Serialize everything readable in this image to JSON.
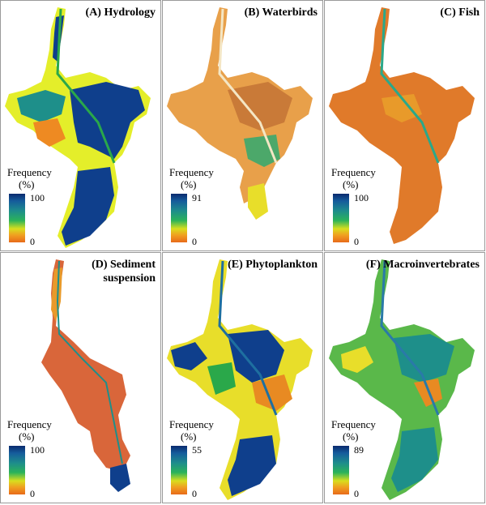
{
  "panels": [
    {
      "id": "A",
      "title": "(A) Hydrology",
      "max": "100",
      "min": "0",
      "palette": {
        "land": "#e4ee2a",
        "body": "#0f3f8c",
        "mid": "#1e8f8a",
        "river": "#2aa84a",
        "warm": "#ee8a22"
      }
    },
    {
      "id": "B",
      "title": "(B) Waterbirds",
      "max": "91",
      "min": "0",
      "palette": {
        "land": "#e8a04a",
        "body": "#d98a40",
        "mid": "#c97a38",
        "river": "#f4e6c4",
        "warm": "#4ca86a"
      }
    },
    {
      "id": "C",
      "title": "(C) Fish",
      "max": "100",
      "min": "0",
      "palette": {
        "land": "#e07a2a",
        "body": "#d96a22",
        "mid": "#e89a2a",
        "river": "#2aa88a",
        "warm": "#c45a20"
      }
    },
    {
      "id": "D",
      "title_line1": "(D) Sediment",
      "title_line2": "suspension",
      "max": "100",
      "min": "0",
      "palette": {
        "land": "#d9663a",
        "body": "#d45a30",
        "mid": "#e89a2a",
        "river": "#1e8f8a",
        "warm": "#c44a28"
      }
    },
    {
      "id": "E",
      "title": "(E) Phytoplankton",
      "max": "55",
      "min": "0",
      "palette": {
        "land": "#e8de2a",
        "body": "#0f3f8c",
        "mid": "#2aa84a",
        "river": "#1e6fa0",
        "warm": "#e88a22"
      }
    },
    {
      "id": "F",
      "title": "(F) Macroinvertebrates",
      "max": "89",
      "min": "0",
      "palette": {
        "land": "#5ab84a",
        "body": "#1e8f8a",
        "mid": "#e8de2a",
        "river": "#2a7aa8",
        "warm": "#e88a22"
      }
    }
  ],
  "legend": {
    "label": "Frequency",
    "unit": "(%)"
  }
}
